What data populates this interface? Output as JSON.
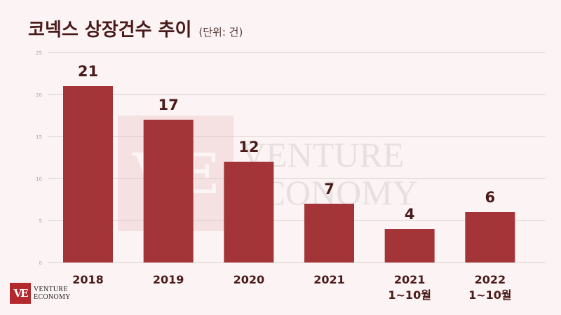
{
  "header": {
    "title": "코넥스 상장건수 추이",
    "unit": "(단위: 건)"
  },
  "branding": {
    "logo_line1": "VENTURE",
    "logo_line2": "ECONOMY",
    "logo_mark": "VE",
    "accent_color": "#a33538"
  },
  "chart_data": {
    "type": "bar",
    "title": "코넥스 상장건수 추이",
    "subtitle": "(단위: 건)",
    "categories": [
      [
        "2018"
      ],
      [
        "2019"
      ],
      [
        "2020"
      ],
      [
        "2021"
      ],
      [
        "2021",
        "1~10월"
      ],
      [
        "2022",
        "1~10월"
      ]
    ],
    "values": [
      21,
      17,
      12,
      7,
      4,
      6
    ],
    "ylim": [
      0,
      25
    ],
    "yticks": [
      0,
      5,
      10,
      15,
      20,
      25
    ],
    "grid": true,
    "bar_color": "#a33538"
  }
}
